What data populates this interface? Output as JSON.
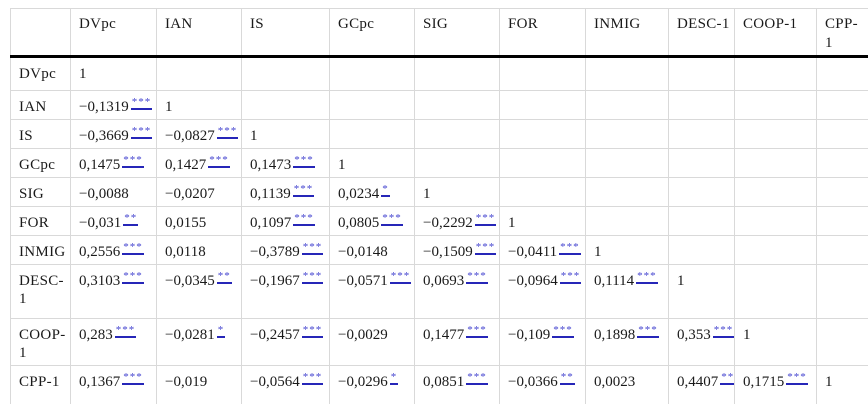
{
  "table": {
    "corner_label": "",
    "columns": [
      "DVpc",
      "IAN",
      "IS",
      "GCpc",
      "SIG",
      "FOR",
      "INMIG",
      "DESC-1",
      "COOP-1",
      "CPP-1"
    ],
    "rows": [
      {
        "label": "DVpc",
        "cells": [
          {
            "v": "1"
          }
        ]
      },
      {
        "label": "IAN",
        "cells": [
          {
            "v": "−0,1319",
            "sig": "***"
          },
          {
            "v": "1"
          }
        ]
      },
      {
        "label": "IS",
        "cells": [
          {
            "v": "−0,3669",
            "sig": "***"
          },
          {
            "v": "−0,0827",
            "sig": "***"
          },
          {
            "v": "1"
          }
        ]
      },
      {
        "label": "GCpc",
        "cells": [
          {
            "v": "0,1475",
            "sig": "***"
          },
          {
            "v": "0,1427",
            "sig": "***"
          },
          {
            "v": "0,1473",
            "sig": "***"
          },
          {
            "v": "1"
          }
        ]
      },
      {
        "label": "SIG",
        "cells": [
          {
            "v": "−0,0088"
          },
          {
            "v": "−0,0207"
          },
          {
            "v": "0,1139",
            "sig": "***"
          },
          {
            "v": "0,0234",
            "sig": "*"
          },
          {
            "v": "1"
          }
        ]
      },
      {
        "label": "FOR",
        "cells": [
          {
            "v": "−0,031",
            "sig": "**"
          },
          {
            "v": "0,0155"
          },
          {
            "v": "0,1097",
            "sig": "***"
          },
          {
            "v": "0,0805",
            "sig": "***"
          },
          {
            "v": "−0,2292",
            "sig": "***"
          },
          {
            "v": "1"
          }
        ]
      },
      {
        "label": "INMIG",
        "cells": [
          {
            "v": "0,2556",
            "sig": "***"
          },
          {
            "v": "0,0118"
          },
          {
            "v": "−0,3789",
            "sig": "***"
          },
          {
            "v": "−0,0148"
          },
          {
            "v": "−0,1509",
            "sig": "***"
          },
          {
            "v": "−0,0411",
            "sig": "***"
          },
          {
            "v": "1"
          }
        ]
      },
      {
        "label": "DESC-1",
        "cells": [
          {
            "v": "0,3103",
            "sig": "***"
          },
          {
            "v": "−0,0345",
            "sig": "**"
          },
          {
            "v": "−0,1967",
            "sig": "***"
          },
          {
            "v": "−0,0571",
            "sig": "***"
          },
          {
            "v": "0,0693",
            "sig": "***"
          },
          {
            "v": "−0,0964",
            "sig": "***"
          },
          {
            "v": "0,1114",
            "sig": "***"
          },
          {
            "v": "1"
          }
        ]
      },
      {
        "label": "COOP-1",
        "cells": [
          {
            "v": "0,283",
            "sig": "***"
          },
          {
            "v": "−0,0281",
            "sig": "*"
          },
          {
            "v": "−0,2457",
            "sig": "***"
          },
          {
            "v": "−0,0029"
          },
          {
            "v": "0,1477",
            "sig": "***"
          },
          {
            "v": "−0,109",
            "sig": "***"
          },
          {
            "v": "0,1898",
            "sig": "***"
          },
          {
            "v": "0,353",
            "sig": "***"
          },
          {
            "v": "1"
          }
        ]
      },
      {
        "label": "CPP-1",
        "cells": [
          {
            "v": "0,1367",
            "sig": "***"
          },
          {
            "v": "−0,019"
          },
          {
            "v": "−0,0564",
            "sig": "***"
          },
          {
            "v": "−0,0296",
            "sig": "*"
          },
          {
            "v": "0,0851",
            "sig": "***"
          },
          {
            "v": "−0,0366",
            "sig": "**"
          },
          {
            "v": "0,0023"
          },
          {
            "v": "0,4407",
            "sig": "***"
          },
          {
            "v": "0,1715",
            "sig": "***"
          },
          {
            "v": "1"
          }
        ]
      }
    ]
  },
  "colors": {
    "significance_star": "#4343cf",
    "significance_underline": "#2626b8",
    "header_rule": "#000000",
    "grid_line": "#d9d9d9",
    "background": "#ffffff"
  }
}
